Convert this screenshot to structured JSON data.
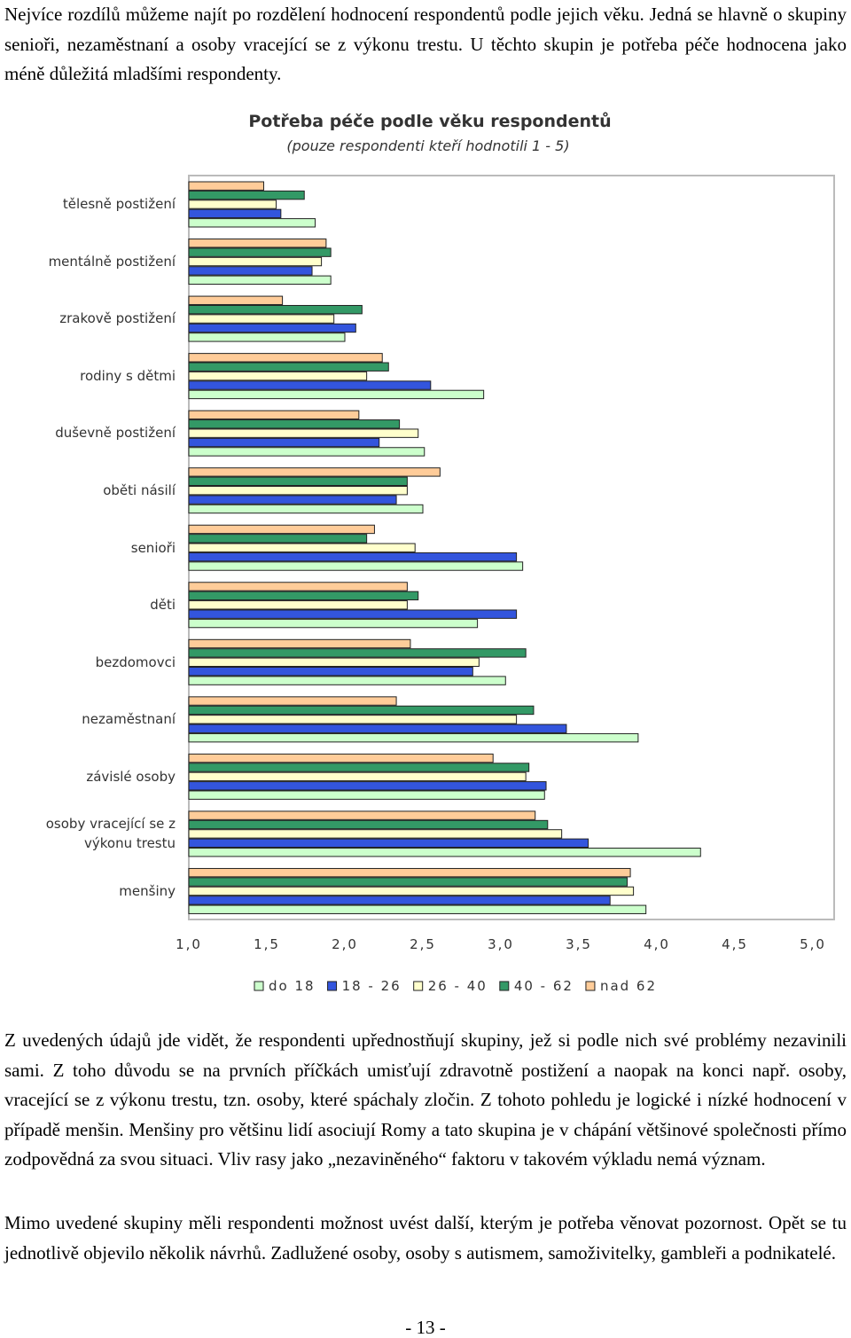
{
  "paragraphs": [
    "Nejvíce rozdílů můžeme najít po rozdělení hodnocení respondentů podle jejich věku. Jedná se hlavně o skupiny senioři, nezaměstnaní a osoby vracející se z výkonu trestu. U těchto skupin je potřeba péče hodnocena jako méně důležitá mladšími respondenty.",
    "Z uvedených údajů jde vidět, že respondenti upřednostňují skupiny, jež si podle nich své problémy nezavinili sami. Z toho důvodu se na prvních příčkách umisťují zdravotně postižení a naopak na konci např. osoby, vracející se z výkonu trestu, tzn. osoby, které spáchaly zločin. Z tohoto pohledu je logické i nízké hodnocení v případě menšin. Menšiny pro většinu lidí asociují Romy a tato skupina je v chápání většinové společnosti přímo zodpovědná za svou situaci. Vliv rasy jako „nezaviněného“ faktoru v takovém výkladu nemá význam.",
    "Mimo uvedené skupiny měli respondenti možnost uvést další, kterým je potřeba věnovat pozornost. Opět se tu jednotlivě objevilo několik návrhů. Zadlužené osoby, osoby s autismem, samoživitelky, gambleři a podnikatelé."
  ],
  "chart_data": {
    "type": "hbar",
    "title": "Potřeba péče podle věku respondentů",
    "subtitle": "(pouze respondenti kteří hodnotili 1 - 5)",
    "categories": [
      "tělesně postižení",
      "mentálně postižení",
      "zrakově postižení",
      "rodiny s dětmi",
      "duševně postižení",
      "oběti násilí",
      "senioři",
      "děti",
      "bezdomovci",
      "nezaměstnaní",
      "závislé osoby",
      "osoby vracející se z výkonu trestu",
      "menšiny"
    ],
    "series": [
      {
        "name": "do 18",
        "color": "#ccffcc",
        "values": [
          1.81,
          1.91,
          2.0,
          2.89,
          2.51,
          2.5,
          3.14,
          2.85,
          3.03,
          3.88,
          3.28,
          4.28,
          3.93
        ]
      },
      {
        "name": "18 - 26",
        "color": "#3355dd",
        "values": [
          1.59,
          1.79,
          2.07,
          2.55,
          2.22,
          2.33,
          3.1,
          3.1,
          2.82,
          3.42,
          3.29,
          3.56,
          3.7
        ]
      },
      {
        "name": "26 - 40",
        "color": "#ffffcc",
        "values": [
          1.56,
          1.85,
          1.93,
          2.14,
          2.47,
          2.4,
          2.45,
          2.4,
          2.86,
          3.1,
          3.16,
          3.39,
          3.85
        ]
      },
      {
        "name": "40 - 62",
        "color": "#339966",
        "values": [
          1.74,
          1.91,
          2.11,
          2.28,
          2.35,
          2.4,
          2.14,
          2.47,
          3.16,
          3.21,
          3.18,
          3.3,
          3.81
        ]
      },
      {
        "name": "nad 62",
        "color": "#ffcc99",
        "values": [
          1.48,
          1.88,
          1.6,
          2.24,
          2.09,
          2.61,
          2.19,
          2.4,
          2.42,
          2.33,
          2.95,
          3.22,
          3.83
        ]
      }
    ],
    "xlim": [
      1,
      5
    ],
    "xticks": [
      {
        "value": 1,
        "label": "1,0"
      },
      {
        "value": 1.5,
        "label": "1,5"
      },
      {
        "value": 2,
        "label": "2,0"
      },
      {
        "value": 2.5,
        "label": "2,5"
      },
      {
        "value": 3,
        "label": "3,0"
      },
      {
        "value": 3.5,
        "label": "3,5"
      },
      {
        "value": 4,
        "label": "4,0"
      },
      {
        "value": 4.5,
        "label": "4,5"
      },
      {
        "value": 5,
        "label": "5,0"
      }
    ],
    "legend": "bottom"
  },
  "page_number": "- 13 -"
}
